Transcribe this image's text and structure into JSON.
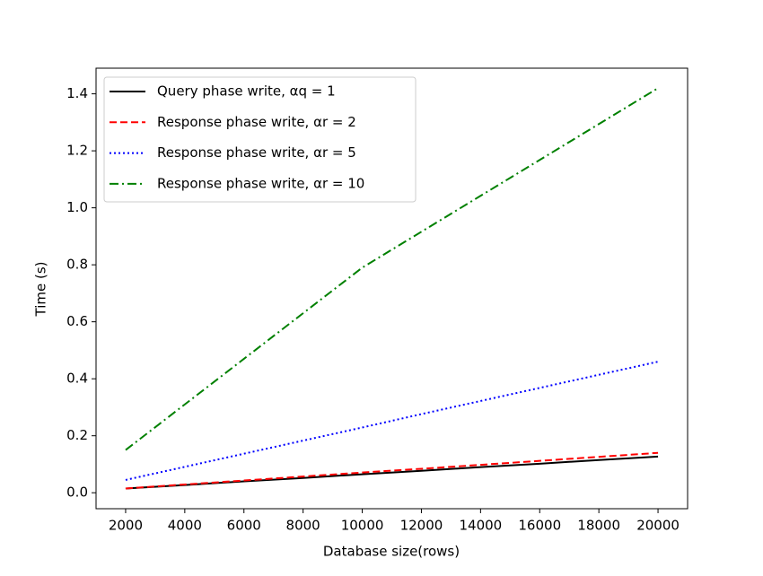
{
  "chart_data": {
    "type": "line",
    "x_label": "Database size(rows)",
    "y_label": "Time (s)",
    "x": [
      2000,
      4000,
      6000,
      8000,
      10000,
      12000,
      14000,
      16000,
      18000,
      20000
    ],
    "series": [
      {
        "name": "Query phase write, αq = 1",
        "color": "#000000",
        "dash": "solid",
        "values": [
          0.015,
          0.027,
          0.04,
          0.052,
          0.065,
          0.077,
          0.09,
          0.102,
          0.115,
          0.127
        ]
      },
      {
        "name": "Response phase write, αr = 2",
        "color": "#ff0000",
        "dash": "dashed",
        "values": [
          0.015,
          0.029,
          0.043,
          0.057,
          0.071,
          0.084,
          0.098,
          0.112,
          0.126,
          0.14
        ]
      },
      {
        "name": "Response phase write, αr = 5",
        "color": "#0000ff",
        "dash": "dotted",
        "values": [
          0.045,
          0.091,
          0.137,
          0.183,
          0.229,
          0.276,
          0.322,
          0.368,
          0.414,
          0.46
        ]
      },
      {
        "name": "Response phase write, αr = 10",
        "color": "#008000",
        "dash": "dashdot",
        "values": [
          0.15,
          0.31,
          0.47,
          0.63,
          0.79,
          0.916,
          1.042,
          1.168,
          1.294,
          1.42
        ]
      }
    ],
    "xlim": [
      1000,
      21000
    ],
    "ylim": [
      -0.056,
      1.49
    ],
    "xticks": [
      2000,
      4000,
      6000,
      8000,
      10000,
      12000,
      14000,
      16000,
      18000,
      20000
    ],
    "yticks": [
      {
        "value": 0,
        "label": "0.0"
      },
      0.2,
      0.4,
      0.6,
      0.8,
      {
        "value": 1,
        "label": "1.0"
      },
      1.2,
      1.4
    ],
    "legend": "upper left",
    "grid": false
  }
}
